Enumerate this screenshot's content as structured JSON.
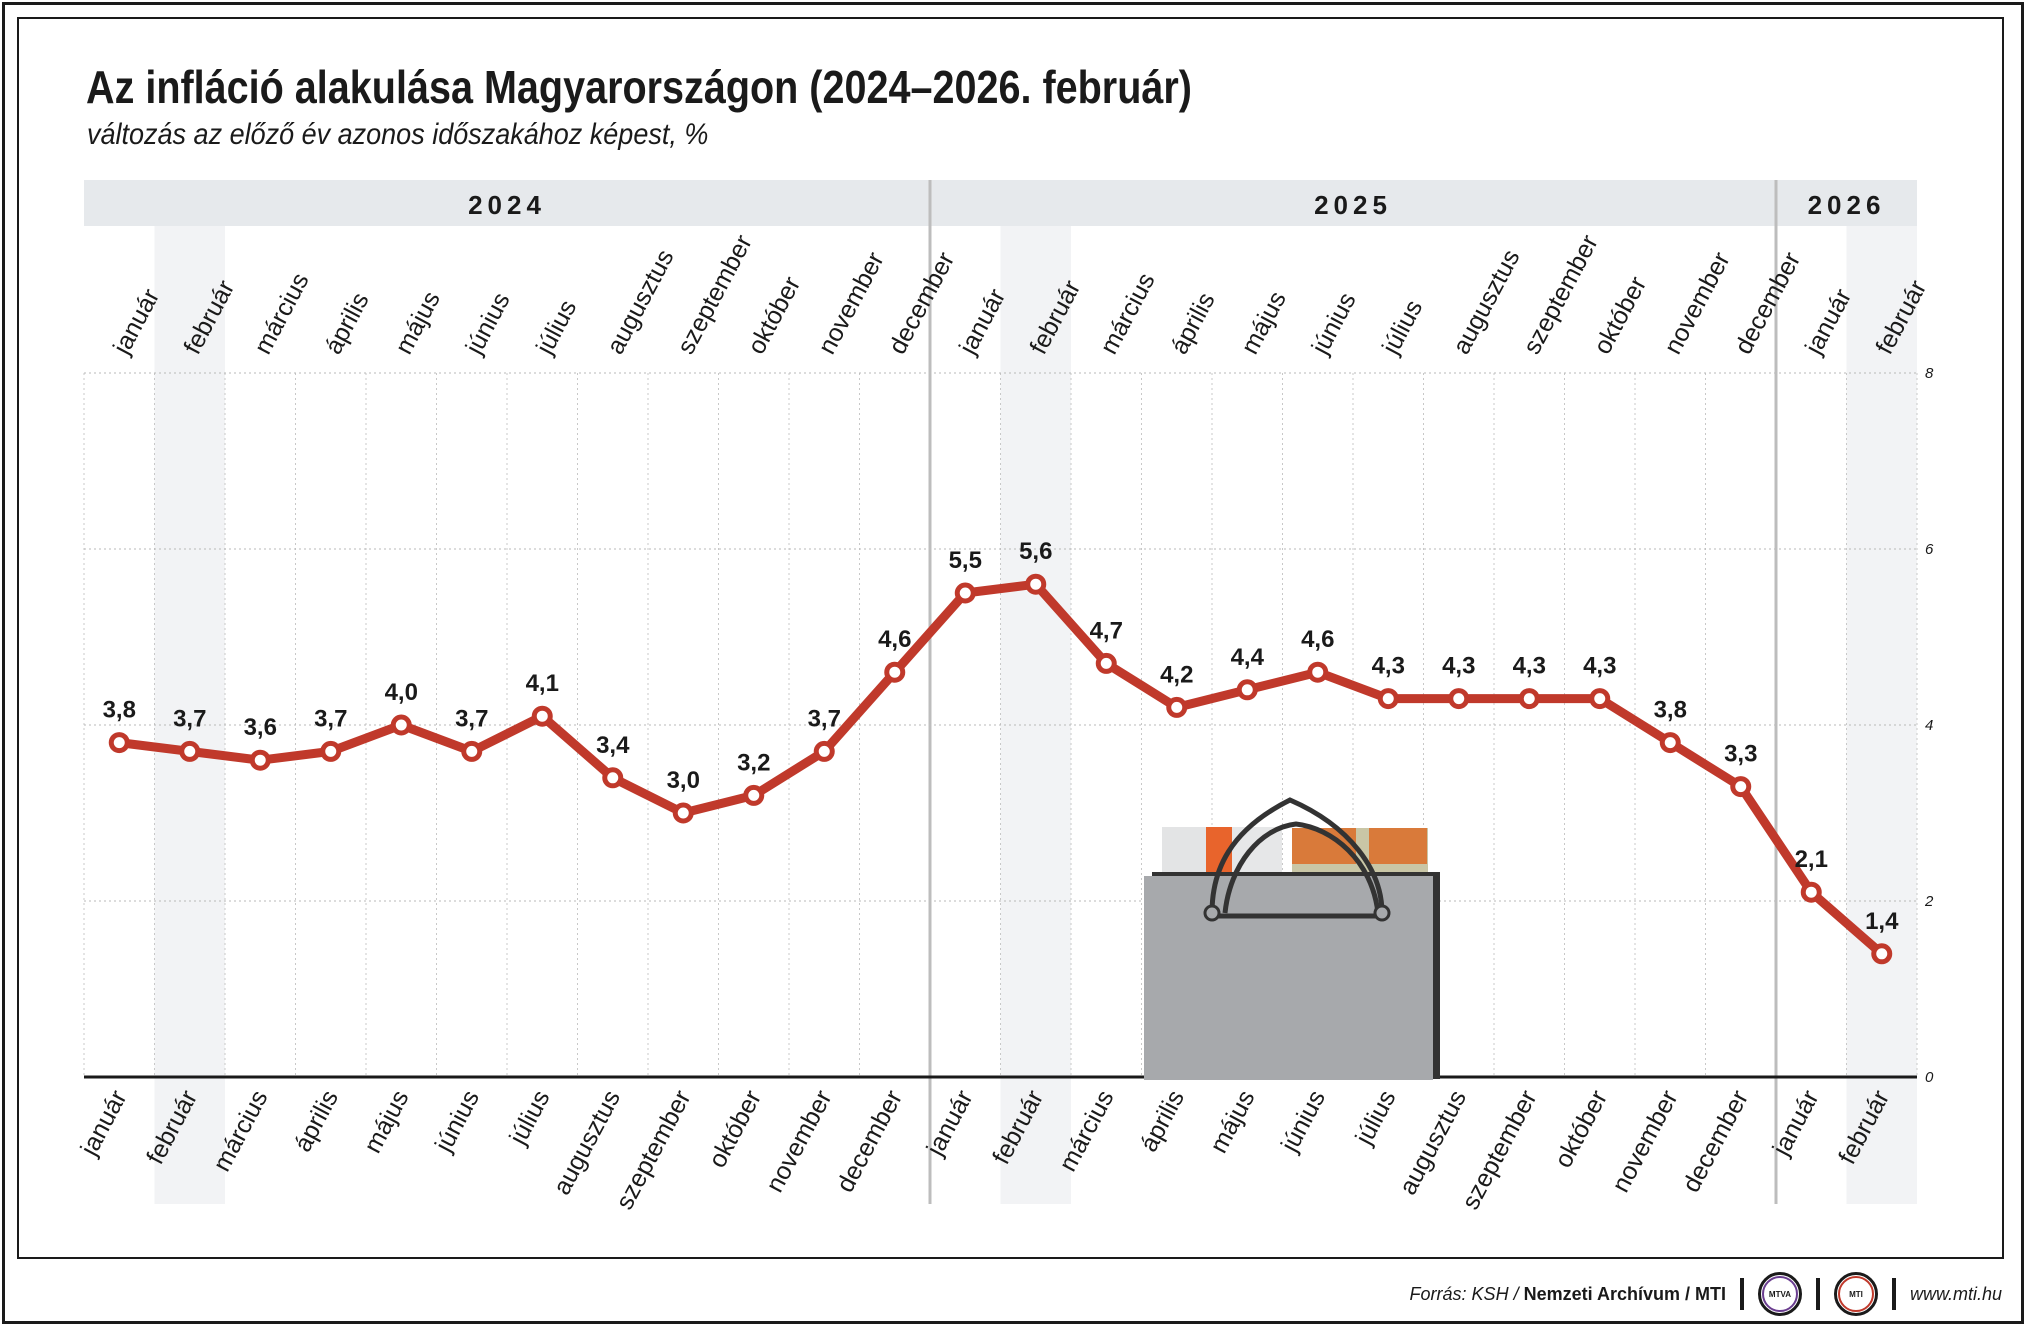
{
  "title": "Az infláció alakulása Magyarországon (2024–2026. február)",
  "subtitle": "változás az előző év azonos időszakához képest, %",
  "colors": {
    "line": "#c0392b",
    "header_band": "#e6e9ec",
    "shade": "#f2f3f5",
    "bag": "#a7a9ac"
  },
  "chart_data": {
    "type": "line",
    "years": [
      {
        "label": "2024",
        "months": 12
      },
      {
        "label": "2025",
        "months": 12
      },
      {
        "label": "2026",
        "months": 2
      }
    ],
    "categories": [
      "január",
      "február",
      "március",
      "április",
      "május",
      "június",
      "július",
      "augusztus",
      "szeptember",
      "október",
      "november",
      "december",
      "január",
      "február",
      "március",
      "április",
      "május",
      "június",
      "július",
      "augusztus",
      "szeptember",
      "október",
      "november",
      "december",
      "január",
      "február"
    ],
    "series": [
      {
        "values": [
          3.8,
          3.7,
          3.6,
          3.7,
          4.0,
          3.7,
          4.1,
          3.4,
          3.0,
          3.2,
          3.7,
          4.6,
          5.5,
          5.6,
          4.7,
          4.2,
          4.4,
          4.6,
          4.3,
          4.3,
          4.3,
          4.3,
          3.8,
          3.3,
          2.1,
          1.4
        ]
      }
    ],
    "value_labels": [
      "3,8",
      "3,7",
      "3,6",
      "3,7",
      "4,0",
      "3,7",
      "4,1",
      "3,4",
      "3,0",
      "3,2",
      "3,7",
      "4,6",
      "5,5",
      "5,6",
      "4,7",
      "4,2",
      "4,4",
      "4,6",
      "4,3",
      "4,3",
      "4,3",
      "4,3",
      "3,8",
      "3,3",
      "2,1",
      "1,4"
    ],
    "ylim": [
      0,
      8
    ],
    "yticks": [
      "0",
      "2",
      "4",
      "6",
      "8"
    ],
    "grid": true,
    "xlabel": "",
    "ylabel": ""
  },
  "footer": {
    "source_prefix": "Forrás: KSH /",
    "source_bold": "Nemzeti Archívum / MTI",
    "logo_mtva": "MTVA",
    "logo_mti": "MTI",
    "website": "www.mti.hu"
  }
}
